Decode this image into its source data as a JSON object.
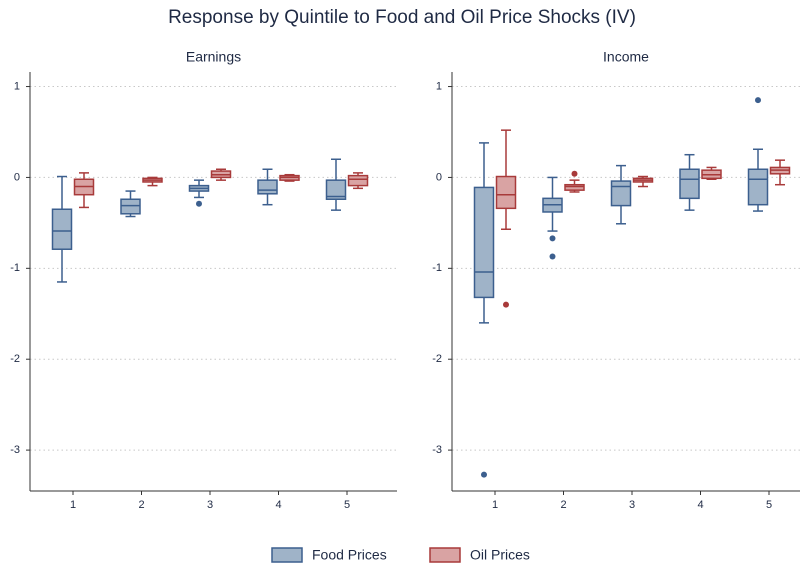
{
  "title": "Response by Quintile to Food and Oil Price Shocks (IV)",
  "chart_data": [
    {
      "type": "box",
      "title": "Earnings",
      "categories": [
        "1",
        "2",
        "3",
        "4",
        "5"
      ],
      "ylim": [
        -3.45,
        1.16
      ],
      "yticks": [
        1,
        0,
        -1,
        -2,
        -3
      ],
      "grid": true,
      "series": [
        {
          "name": "Food Prices",
          "color": "#9fb3c8",
          "edge": "#3c5f8e",
          "values": [
            {
              "whislo": -1.15,
              "q1": -0.79,
              "med": -0.59,
              "q3": -0.35,
              "whishi": 0.01,
              "fliers": []
            },
            {
              "whislo": -0.43,
              "q1": -0.4,
              "med": -0.31,
              "q3": -0.24,
              "whishi": -0.15,
              "fliers": []
            },
            {
              "whislo": -0.22,
              "q1": -0.15,
              "med": -0.12,
              "q3": -0.09,
              "whishi": -0.03,
              "fliers": [
                -0.29
              ]
            },
            {
              "whislo": -0.3,
              "q1": -0.18,
              "med": -0.14,
              "q3": -0.03,
              "whishi": 0.09,
              "fliers": []
            },
            {
              "whislo": -0.36,
              "q1": -0.24,
              "med": -0.21,
              "q3": -0.03,
              "whishi": 0.2,
              "fliers": []
            }
          ]
        },
        {
          "name": "Oil Prices",
          "color": "#d9a3a3",
          "edge": "#a83a3a",
          "values": [
            {
              "whislo": -0.33,
              "q1": -0.19,
              "med": -0.1,
              "q3": -0.02,
              "whishi": 0.05,
              "fliers": []
            },
            {
              "whislo": -0.09,
              "q1": -0.05,
              "med": -0.03,
              "q3": -0.01,
              "whishi": 0,
              "fliers": []
            },
            {
              "whislo": -0.03,
              "q1": 0,
              "med": 0.03,
              "q3": 0.07,
              "whishi": 0.09,
              "fliers": []
            },
            {
              "whislo": -0.04,
              "q1": -0.03,
              "med": 0,
              "q3": 0.02,
              "whishi": 0.03,
              "fliers": []
            },
            {
              "whislo": -0.12,
              "q1": -0.09,
              "med": -0.02,
              "q3": 0.02,
              "whishi": 0.05,
              "fliers": []
            }
          ]
        }
      ]
    },
    {
      "type": "box",
      "title": "Income",
      "categories": [
        "1",
        "2",
        "3",
        "4",
        "5"
      ],
      "ylim": [
        -3.45,
        1.16
      ],
      "yticks": [
        1,
        0,
        -1,
        -2,
        -3
      ],
      "grid": true,
      "series": [
        {
          "name": "Food Prices",
          "color": "#9fb3c8",
          "edge": "#3c5f8e",
          "values": [
            {
              "whislo": -1.6,
              "q1": -1.32,
              "med": -1.04,
              "q3": -0.11,
              "whishi": 0.38,
              "fliers": [
                -3.27
              ]
            },
            {
              "whislo": -0.59,
              "q1": -0.38,
              "med": -0.3,
              "q3": -0.23,
              "whishi": 0,
              "fliers": [
                -0.67,
                -0.87
              ]
            },
            {
              "whislo": -0.51,
              "q1": -0.31,
              "med": -0.1,
              "q3": -0.04,
              "whishi": 0.13,
              "fliers": []
            },
            {
              "whislo": -0.36,
              "q1": -0.23,
              "med": -0.02,
              "q3": 0.09,
              "whishi": 0.25,
              "fliers": []
            },
            {
              "whislo": -0.37,
              "q1": -0.3,
              "med": -0.02,
              "q3": 0.09,
              "whishi": 0.31,
              "fliers": [
                0.85
              ]
            }
          ]
        },
        {
          "name": "Oil Prices",
          "color": "#d9a3a3",
          "edge": "#a83a3a",
          "values": [
            {
              "whislo": -0.57,
              "q1": -0.34,
              "med": -0.19,
              "q3": 0.01,
              "whishi": 0.52,
              "fliers": [
                -1.4
              ]
            },
            {
              "whislo": -0.16,
              "q1": -0.14,
              "med": -0.1,
              "q3": -0.08,
              "whishi": -0.03,
              "fliers": [
                0.04
              ]
            },
            {
              "whislo": -0.1,
              "q1": -0.05,
              "med": -0.03,
              "q3": -0.01,
              "whishi": 0.01,
              "fliers": []
            },
            {
              "whislo": -0.02,
              "q1": -0.01,
              "med": 0.03,
              "q3": 0.08,
              "whishi": 0.11,
              "fliers": []
            },
            {
              "whislo": -0.08,
              "q1": 0.04,
              "med": 0.08,
              "q3": 0.11,
              "whishi": 0.19,
              "fliers": []
            }
          ]
        }
      ]
    }
  ]
}
